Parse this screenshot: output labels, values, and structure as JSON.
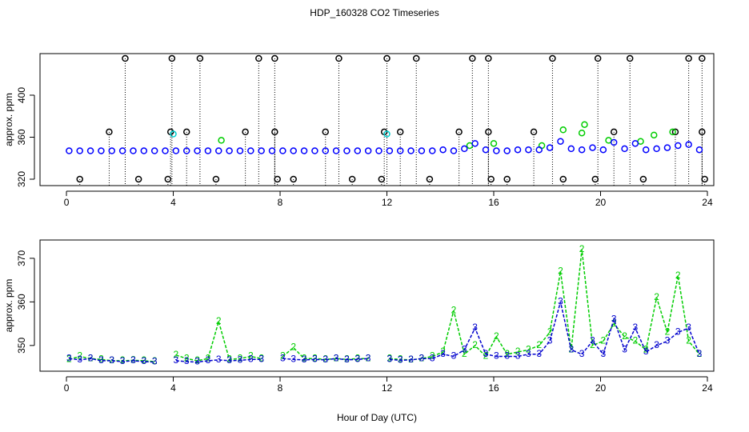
{
  "chart_data": [
    {
      "type": "scatter",
      "title": "HDP_160328  CO2 Timeseries",
      "ylabel": "approx. ppm",
      "xlim": [
        -0.99,
        24.24
      ],
      "xticks": [
        0,
        4,
        8,
        12,
        16,
        20,
        24
      ],
      "ylim": [
        313.9,
        439.6
      ],
      "yticks": [
        320,
        360,
        400
      ],
      "series": [
        {
          "color": "#000000",
          "drop_lines": true,
          "x": [
            0.5,
            1.6,
            2.2,
            2.7,
            3.8,
            3.9,
            3.95,
            4.5,
            5.0,
            5.6,
            6.7,
            7.2,
            7.8,
            7.8,
            7.9,
            8.5,
            9.7,
            10.2,
            10.7,
            11.8,
            11.9,
            12.0,
            12.5,
            13.1,
            13.6,
            14.7,
            15.2,
            15.8,
            15.8,
            15.9,
            16.5,
            17.5,
            18.2,
            18.6,
            19.8,
            19.9,
            20.5,
            21.1,
            21.6,
            22.8,
            23.3,
            23.8,
            23.8,
            23.9
          ],
          "values": [
            320,
            365,
            435,
            320,
            320,
            365,
            435,
            365,
            435,
            320,
            365,
            435,
            435,
            365,
            320,
            320,
            365,
            435,
            320,
            320,
            365,
            435,
            365,
            435,
            320,
            365,
            435,
            435,
            365,
            320,
            320,
            365,
            435,
            320,
            320,
            435,
            365,
            435,
            320,
            365,
            435,
            435,
            365,
            320
          ]
        },
        {
          "color": "#00cd00",
          "drop_lines": false,
          "x": [
            5.8,
            15.1,
            16.0,
            17.8,
            18.6,
            19.3,
            19.4,
            20.3,
            21.5,
            22.0,
            22.7
          ],
          "values": [
            357,
            352,
            354,
            352,
            367,
            364,
            372,
            357,
            356,
            362,
            365
          ]
        },
        {
          "color": "#00cdcd",
          "drop_lines": false,
          "x": [
            4.0,
            12.0
          ],
          "values": [
            363,
            363
          ]
        },
        {
          "color": "#0000ff",
          "drop_lines": false,
          "x": [
            0.1,
            0.5,
            0.9,
            1.3,
            1.7,
            2.1,
            2.5,
            2.9,
            3.3,
            3.7,
            4.1,
            4.5,
            4.9,
            5.3,
            5.7,
            6.1,
            6.5,
            6.9,
            7.3,
            7.7,
            8.1,
            8.5,
            8.9,
            9.3,
            9.7,
            10.1,
            10.5,
            10.9,
            11.3,
            11.7,
            12.1,
            12.5,
            12.9,
            13.3,
            13.7,
            14.1,
            14.5,
            14.9,
            15.3,
            15.7,
            16.1,
            16.5,
            16.9,
            17.3,
            17.7,
            18.1,
            18.5,
            18.9,
            19.3,
            19.7,
            20.1,
            20.5,
            20.9,
            21.3,
            21.7,
            22.1,
            22.5,
            22.9,
            23.3,
            23.7
          ],
          "values": [
            347,
            347,
            347,
            347,
            347,
            347,
            347,
            347,
            347,
            347,
            347,
            347,
            347,
            347,
            347,
            347,
            347,
            347,
            347,
            347,
            347,
            347,
            347,
            347,
            347,
            347,
            347,
            347,
            347,
            347,
            347,
            347,
            347,
            347,
            347,
            348,
            347,
            349,
            354,
            348,
            347,
            347,
            348,
            348,
            348,
            350,
            356,
            349,
            348,
            350,
            348,
            355,
            349,
            354,
            348,
            349,
            350,
            352,
            353,
            348
          ]
        }
      ]
    },
    {
      "type": "line",
      "ylabel": "approx. ppm",
      "xlabel": "Hour of Day (UTC)",
      "xlim": [
        -0.99,
        24.24
      ],
      "xticks": [
        0,
        4,
        8,
        12,
        16,
        20,
        24
      ],
      "ylim": [
        344.1,
        374.2
      ],
      "yticks": [
        350,
        360,
        370
      ],
      "x": [
        0.1,
        0.5,
        0.9,
        1.3,
        1.7,
        2.1,
        2.5,
        2.9,
        3.3,
        3.7,
        4.1,
        4.5,
        4.9,
        5.3,
        5.7,
        6.1,
        6.5,
        6.9,
        7.3,
        7.7,
        8.1,
        8.5,
        8.9,
        9.3,
        9.7,
        10.1,
        10.5,
        10.9,
        11.3,
        11.7,
        12.1,
        12.5,
        12.9,
        13.3,
        13.7,
        14.1,
        14.5,
        14.9,
        15.3,
        15.7,
        16.1,
        16.5,
        16.9,
        17.3,
        17.7,
        18.1,
        18.5,
        18.9,
        19.3,
        19.7,
        20.1,
        20.5,
        20.9,
        21.3,
        21.7,
        22.1,
        22.5,
        22.9,
        23.3,
        23.7
      ],
      "series": [
        {
          "color": "#00cd00",
          "marker": "2",
          "values": [
            346.8,
            347.5,
            347,
            346.8,
            346.5,
            346.5,
            346.6,
            346.5,
            346.3,
            null,
            347.8,
            347,
            346.5,
            347,
            355.5,
            346.8,
            347,
            347.5,
            347,
            null,
            347.5,
            349.5,
            347,
            347,
            346.8,
            347,
            346.8,
            347,
            347,
            null,
            347,
            346.8,
            346.7,
            347,
            347.5,
            348.5,
            358,
            348,
            350,
            347.5,
            352,
            348,
            348.5,
            349,
            350,
            353,
            367,
            349,
            372,
            350,
            351,
            355,
            352,
            351,
            349,
            361,
            353,
            366,
            351,
            348
          ]
        },
        {
          "color": "#0000cd",
          "marker": "3",
          "values": [
            347,
            346.7,
            347,
            346.5,
            346.5,
            346.3,
            346.5,
            346.3,
            346.2,
            null,
            346.5,
            346.3,
            346.2,
            346.5,
            346.7,
            346.5,
            346.6,
            346.8,
            346.8,
            null,
            347,
            346.8,
            346.7,
            346.8,
            346.7,
            347,
            346.7,
            346.8,
            347,
            null,
            346.8,
            346.6,
            346.7,
            347,
            347,
            348,
            347.5,
            349,
            354,
            348,
            347.5,
            347.5,
            347.5,
            348,
            348,
            351,
            360,
            349,
            348,
            351,
            348,
            356,
            349,
            354,
            348.5,
            350,
            351,
            353,
            354,
            348
          ]
        }
      ]
    }
  ]
}
